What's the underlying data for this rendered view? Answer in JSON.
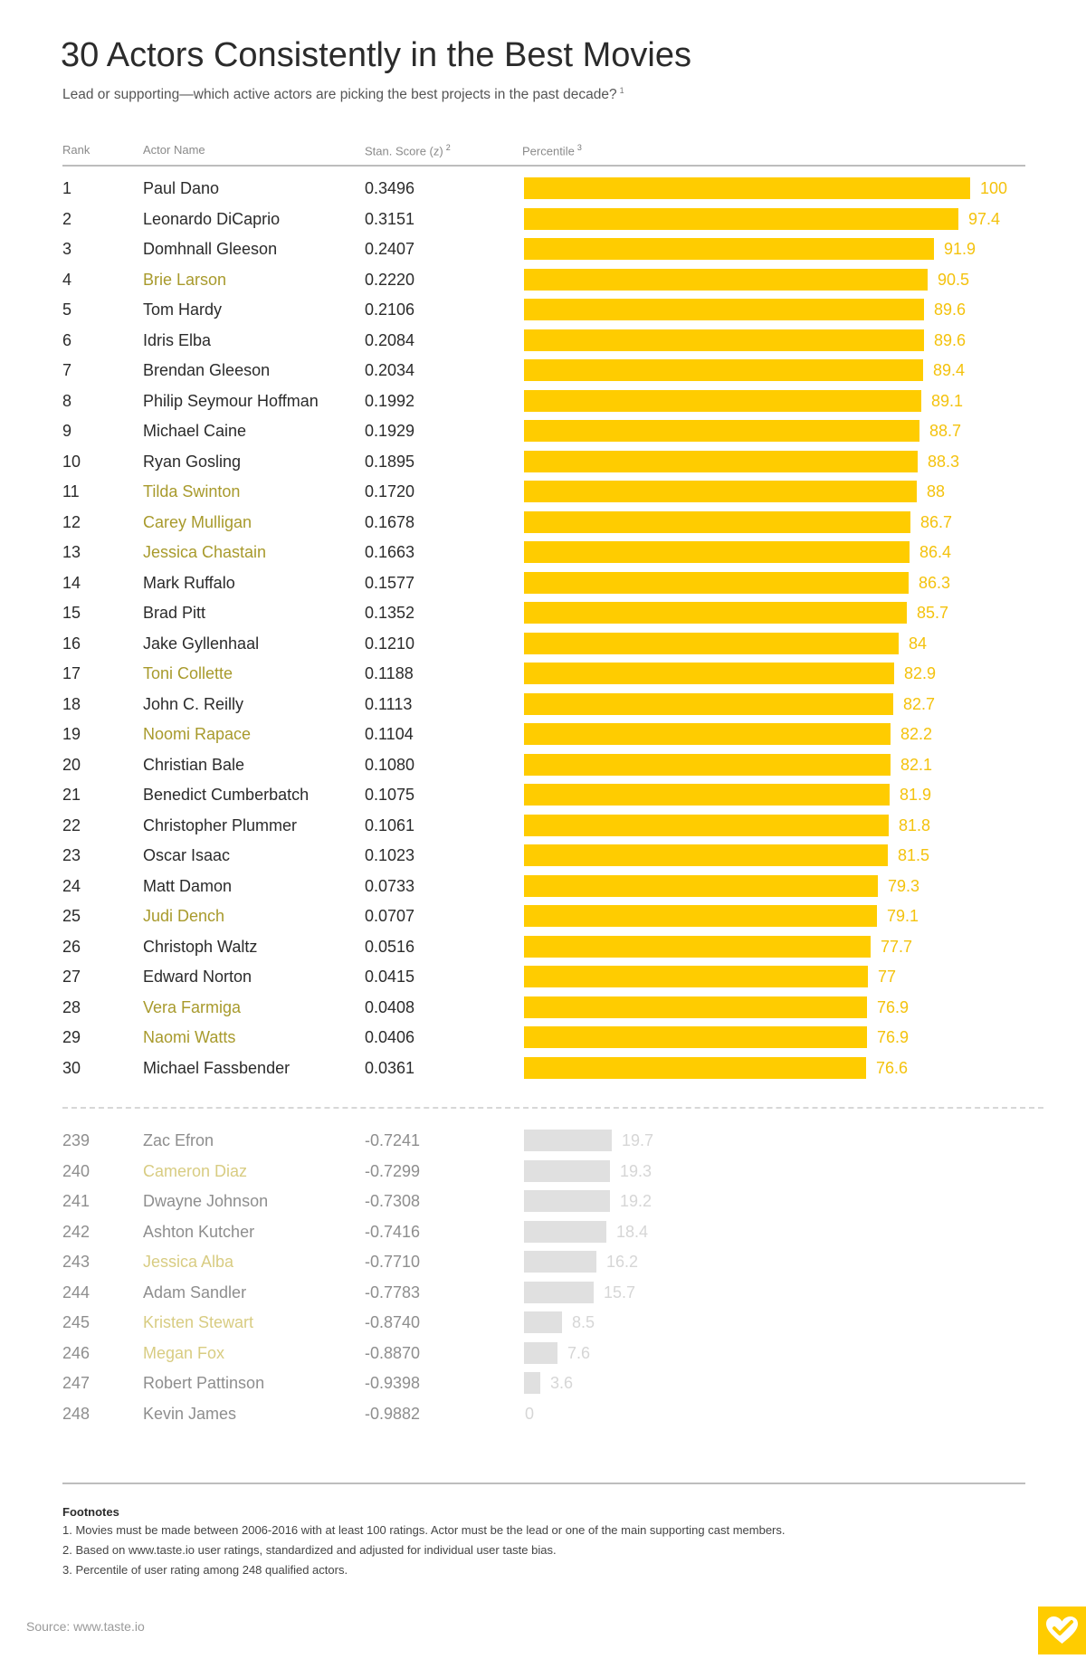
{
  "title": "30 Actors Consistently in the Best Movies",
  "subtitle": "Lead or supporting—which active actors are picking the best projects in the past decade?",
  "subtitle_note": "1",
  "headers": {
    "rank": "Rank",
    "name": "Actor Name",
    "score": "Stan. Score (z)",
    "score_note": "2",
    "percentile": "Percentile",
    "percentile_note": "3"
  },
  "colors": {
    "bar_top": "#ffcc00",
    "bar_bottom": "#e0e0e0",
    "female_name_top": "#a89a2c",
    "female_name_bottom": "#d8cc82",
    "logo": "#ffcc00"
  },
  "chart_data": {
    "type": "bar",
    "orientation": "horizontal",
    "xlim": [
      0,
      100
    ],
    "top": [
      {
        "rank": "1",
        "name": "Paul Dano",
        "score": "0.3496",
        "percentile": 100,
        "percentile_label": "100",
        "female": false
      },
      {
        "rank": "2",
        "name": "Leonardo DiCaprio",
        "score": "0.3151",
        "percentile": 97.4,
        "percentile_label": "97.4",
        "female": false
      },
      {
        "rank": "3",
        "name": "Domhnall Gleeson",
        "score": "0.2407",
        "percentile": 91.9,
        "percentile_label": "91.9",
        "female": false
      },
      {
        "rank": "4",
        "name": "Brie Larson",
        "score": "0.2220",
        "percentile": 90.5,
        "percentile_label": "90.5",
        "female": true
      },
      {
        "rank": "5",
        "name": "Tom Hardy",
        "score": "0.2106",
        "percentile": 89.6,
        "percentile_label": "89.6",
        "female": false
      },
      {
        "rank": "6",
        "name": "Idris Elba",
        "score": "0.2084",
        "percentile": 89.6,
        "percentile_label": "89.6",
        "female": false
      },
      {
        "rank": "7",
        "name": "Brendan Gleeson",
        "score": "0.2034",
        "percentile": 89.4,
        "percentile_label": "89.4",
        "female": false
      },
      {
        "rank": "8",
        "name": "Philip Seymour Hoffman",
        "score": "0.1992",
        "percentile": 89.1,
        "percentile_label": "89.1",
        "female": false
      },
      {
        "rank": "9",
        "name": "Michael Caine",
        "score": "0.1929",
        "percentile": 88.7,
        "percentile_label": "88.7",
        "female": false
      },
      {
        "rank": "10",
        "name": "Ryan Gosling",
        "score": "0.1895",
        "percentile": 88.3,
        "percentile_label": "88.3",
        "female": false
      },
      {
        "rank": "11",
        "name": "Tilda Swinton",
        "score": "0.1720",
        "percentile": 88,
        "percentile_label": "88",
        "female": true
      },
      {
        "rank": "12",
        "name": "Carey Mulligan",
        "score": "0.1678",
        "percentile": 86.7,
        "percentile_label": "86.7",
        "female": true
      },
      {
        "rank": "13",
        "name": "Jessica Chastain",
        "score": "0.1663",
        "percentile": 86.4,
        "percentile_label": "86.4",
        "female": true
      },
      {
        "rank": "14",
        "name": "Mark Ruffalo",
        "score": "0.1577",
        "percentile": 86.3,
        "percentile_label": "86.3",
        "female": false
      },
      {
        "rank": "15",
        "name": "Brad Pitt",
        "score": "0.1352",
        "percentile": 85.7,
        "percentile_label": "85.7",
        "female": false
      },
      {
        "rank": "16",
        "name": "Jake Gyllenhaal",
        "score": "0.1210",
        "percentile": 84,
        "percentile_label": "84",
        "female": false
      },
      {
        "rank": "17",
        "name": "Toni Collette",
        "score": "0.1188",
        "percentile": 82.9,
        "percentile_label": "82.9",
        "female": true
      },
      {
        "rank": "18",
        "name": "John C. Reilly",
        "score": "0.1113",
        "percentile": 82.7,
        "percentile_label": "82.7",
        "female": false
      },
      {
        "rank": "19",
        "name": "Noomi Rapace",
        "score": "0.1104",
        "percentile": 82.2,
        "percentile_label": "82.2",
        "female": true
      },
      {
        "rank": "20",
        "name": "Christian Bale",
        "score": "0.1080",
        "percentile": 82.1,
        "percentile_label": "82.1",
        "female": false
      },
      {
        "rank": "21",
        "name": "Benedict Cumberbatch",
        "score": "0.1075",
        "percentile": 81.9,
        "percentile_label": "81.9",
        "female": false
      },
      {
        "rank": "22",
        "name": "Christopher Plummer",
        "score": "0.1061",
        "percentile": 81.8,
        "percentile_label": "81.8",
        "female": false
      },
      {
        "rank": "23",
        "name": "Oscar Isaac",
        "score": "0.1023",
        "percentile": 81.5,
        "percentile_label": "81.5",
        "female": false
      },
      {
        "rank": "24",
        "name": "Matt Damon",
        "score": "0.0733",
        "percentile": 79.3,
        "percentile_label": "79.3",
        "female": false
      },
      {
        "rank": "25",
        "name": "Judi Dench",
        "score": "0.0707",
        "percentile": 79.1,
        "percentile_label": "79.1",
        "female": true
      },
      {
        "rank": "26",
        "name": "Christoph Waltz",
        "score": "0.0516",
        "percentile": 77.7,
        "percentile_label": "77.7",
        "female": false
      },
      {
        "rank": "27",
        "name": "Edward Norton",
        "score": "0.0415",
        "percentile": 77,
        "percentile_label": "77",
        "female": false
      },
      {
        "rank": "28",
        "name": "Vera Farmiga",
        "score": "0.0408",
        "percentile": 76.9,
        "percentile_label": "76.9",
        "female": true
      },
      {
        "rank": "29",
        "name": "Naomi Watts",
        "score": "0.0406",
        "percentile": 76.9,
        "percentile_label": "76.9",
        "female": true
      },
      {
        "rank": "30",
        "name": "Michael Fassbender",
        "score": "0.0361",
        "percentile": 76.6,
        "percentile_label": "76.6",
        "female": false
      }
    ],
    "bottom": [
      {
        "rank": "239",
        "name": "Zac Efron",
        "score": "-0.7241",
        "percentile": 19.7,
        "percentile_label": "19.7",
        "female": false
      },
      {
        "rank": "240",
        "name": "Cameron Diaz",
        "score": "-0.7299",
        "percentile": 19.3,
        "percentile_label": "19.3",
        "female": true
      },
      {
        "rank": "241",
        "name": "Dwayne Johnson",
        "score": "-0.7308",
        "percentile": 19.2,
        "percentile_label": "19.2",
        "female": false
      },
      {
        "rank": "242",
        "name": "Ashton Kutcher",
        "score": "-0.7416",
        "percentile": 18.4,
        "percentile_label": "18.4",
        "female": false
      },
      {
        "rank": "243",
        "name": "Jessica Alba",
        "score": "-0.7710",
        "percentile": 16.2,
        "percentile_label": "16.2",
        "female": true
      },
      {
        "rank": "244",
        "name": "Adam Sandler",
        "score": "-0.7783",
        "percentile": 15.7,
        "percentile_label": "15.7",
        "female": false
      },
      {
        "rank": "245",
        "name": "Kristen Stewart",
        "score": "-0.8740",
        "percentile": 8.5,
        "percentile_label": "8.5",
        "female": true
      },
      {
        "rank": "246",
        "name": "Megan Fox",
        "score": "-0.8870",
        "percentile": 7.6,
        "percentile_label": "7.6",
        "female": true
      },
      {
        "rank": "247",
        "name": "Robert Pattinson",
        "score": "-0.9398",
        "percentile": 3.6,
        "percentile_label": "3.6",
        "female": false
      },
      {
        "rank": "248",
        "name": "Kevin James",
        "score": "-0.9882",
        "percentile": 0,
        "percentile_label": "0",
        "female": false
      }
    ]
  },
  "footnotes": {
    "title": "Footnotes",
    "items": [
      "1. Movies must be made between 2006-2016 with at least 100 ratings. Actor must be the lead or one of the main supporting cast members.",
      "2. Based on www.taste.io user ratings, standardized and adjusted for individual user taste bias.",
      "3. Percentile of user rating among 248 qualified actors."
    ]
  },
  "source": "Source: www.taste.io",
  "logo_icon": "heart-check-icon"
}
